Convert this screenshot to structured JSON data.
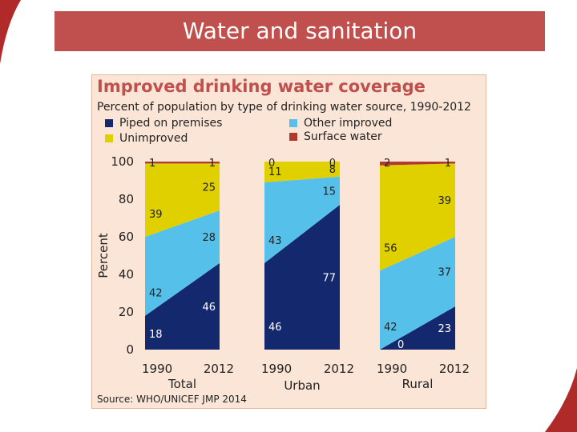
{
  "slide": {
    "title": "Water and sanitation"
  },
  "chart_data": {
    "type": "area",
    "title": "Improved drinking water coverage",
    "subtitle": "Percent of population by type of drinking water source, 1990-2012",
    "ylabel": "Percent",
    "ylim": [
      0,
      100
    ],
    "yticks": [
      0,
      20,
      40,
      60,
      80,
      100
    ],
    "source": "Source:  WHO/UNICEF JMP 2014",
    "legend": [
      {
        "name": "Piped on premises",
        "color": "#14286e"
      },
      {
        "name": "Other improved",
        "color": "#55c0ea"
      },
      {
        "name": "Unimproved",
        "color": "#e0d000"
      },
      {
        "name": "Surface water",
        "color": "#b03a2e"
      }
    ],
    "groups": [
      {
        "name": "Total",
        "x": [
          "1990",
          "2012"
        ],
        "series": [
          {
            "name": "Piped on premises",
            "values": [
              18,
              46
            ]
          },
          {
            "name": "Other improved",
            "values": [
              42,
              28
            ]
          },
          {
            "name": "Unimproved",
            "values": [
              39,
              25
            ]
          },
          {
            "name": "Surface water",
            "values": [
              1,
              1
            ]
          }
        ]
      },
      {
        "name": "Urban",
        "x": [
          "1990",
          "2012"
        ],
        "series": [
          {
            "name": "Piped on premises",
            "values": [
              46,
              77
            ]
          },
          {
            "name": "Other improved",
            "values": [
              43,
              15
            ]
          },
          {
            "name": "Unimproved",
            "values": [
              11,
              8
            ]
          },
          {
            "name": "Surface water",
            "values": [
              0,
              0
            ]
          }
        ]
      },
      {
        "name": "Rural",
        "x": [
          "1990",
          "2012"
        ],
        "series": [
          {
            "name": "Piped on premises",
            "values": [
              0,
              23
            ]
          },
          {
            "name": "Other improved",
            "values": [
              42,
              37
            ]
          },
          {
            "name": "Unimproved",
            "values": [
              56,
              39
            ]
          },
          {
            "name": "Surface water",
            "values": [
              2,
              1
            ]
          }
        ]
      }
    ]
  }
}
